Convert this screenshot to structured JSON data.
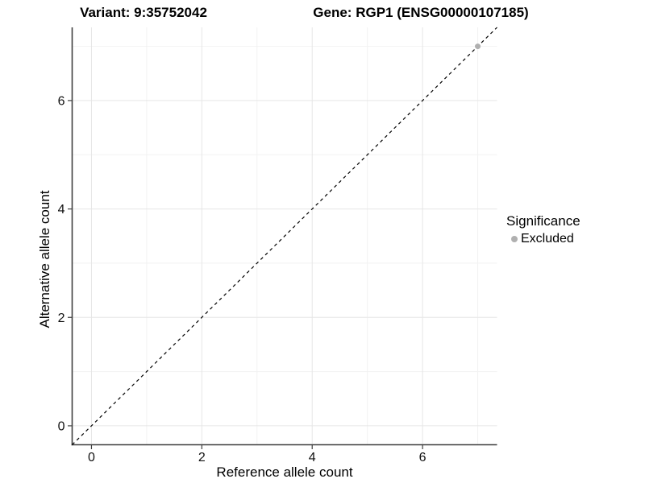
{
  "figure": {
    "title_left": "Variant: 9:35752042",
    "title_right": "Gene: RGP1 (ENSG00000107185)"
  },
  "chart_data": {
    "type": "scatter",
    "titles": [
      "Variant: 9:35752042",
      "Gene: RGP1 (ENSG00000107185)"
    ],
    "xlabel": "Reference allele count",
    "ylabel": "Alternative allele count",
    "xlim": [
      -0.35,
      7.35
    ],
    "ylim": [
      -0.35,
      7.35
    ],
    "x_ticks": {
      "major": [
        0,
        2,
        4,
        6
      ],
      "minor": [
        1,
        3,
        5,
        7
      ]
    },
    "y_ticks": {
      "major": [
        0,
        2,
        4,
        6
      ],
      "minor": [
        1,
        3,
        5,
        7
      ]
    },
    "grid": "major+minor",
    "reference_line": {
      "type": "identity",
      "equation": "y = x",
      "linestyle": "dashed",
      "color": "#000000"
    },
    "series": [
      {
        "name": "Excluded",
        "color": "#b0b0b0",
        "points": [
          [
            7,
            7
          ]
        ]
      }
    ],
    "legend": {
      "title": "Significance",
      "position": "right",
      "items": [
        {
          "label": "Excluded",
          "marker_color": "#b0b0b0"
        }
      ]
    }
  },
  "colors": {
    "background": "#ffffff",
    "grid_major": "#e6e6e6",
    "grid_minor": "#f2f2f2",
    "axis_line": "#3f3f3f",
    "tick_mark": "#3f3f3f",
    "tick_text": "#111111",
    "point": "#b0b0b0",
    "dashed_line": "#000000"
  }
}
